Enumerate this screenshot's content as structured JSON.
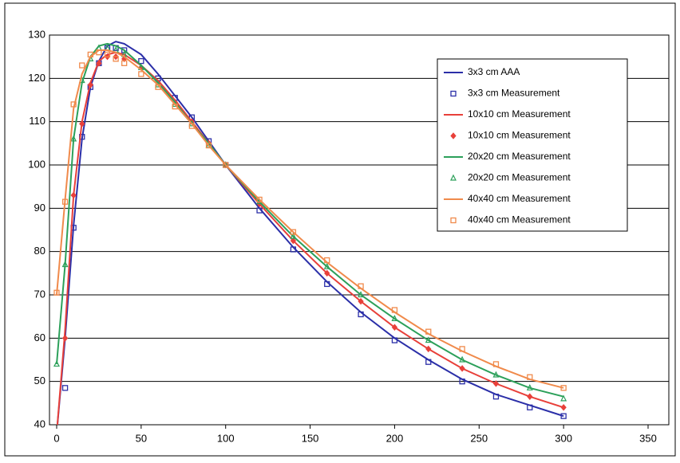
{
  "chart_data": {
    "type": "line",
    "x": [
      0,
      5,
      10,
      15,
      20,
      25,
      30,
      35,
      40,
      50,
      60,
      70,
      80,
      90,
      100,
      120,
      140,
      160,
      180,
      200,
      220,
      240,
      260,
      280,
      300
    ],
    "xlim": [
      0,
      350
    ],
    "xticks": [
      0,
      50,
      100,
      150,
      200,
      250,
      300,
      350
    ],
    "ylim": [
      40,
      130
    ],
    "yticks": [
      40,
      50,
      60,
      70,
      80,
      90,
      100,
      110,
      120,
      130
    ],
    "grid": true,
    "legend": "upper right",
    "series": [
      {
        "name": "3x3 cm AAA",
        "color": "#2b2fa8",
        "style": "line",
        "values": [
          38,
          60,
          86,
          106,
          118,
          124,
          127.5,
          128.5,
          128,
          125.5,
          121,
          116,
          111,
          105.5,
          100,
          90,
          81,
          73,
          66,
          60,
          55,
          50.5,
          47,
          44.5,
          42
        ]
      },
      {
        "name": "3x3 cm Measurement",
        "color": "#2b2fa8",
        "style": "square",
        "values": [
          37,
          48.5,
          85.5,
          106.5,
          118,
          123.5,
          127,
          127,
          126.5,
          124,
          120,
          115.5,
          111,
          105.5,
          100,
          89.5,
          80.5,
          72.5,
          65.5,
          59.5,
          54.5,
          50,
          46.5,
          44,
          42
        ]
      },
      {
        "name": "10x10 cm Measurement",
        "color": "#e8403a",
        "style": "line",
        "values": [
          38,
          62,
          93,
          110,
          119,
          124,
          125.5,
          126,
          125.5,
          123,
          119.5,
          115,
          110,
          105,
          100,
          91,
          82.5,
          75,
          68.5,
          62.5,
          57.5,
          53,
          49.5,
          46.5,
          44
        ]
      },
      {
        "name": "10x10 cm Measurement",
        "color": "#e8403a",
        "style": "diamond",
        "values": [
          39,
          60,
          93,
          109.5,
          118.5,
          123.5,
          125,
          125,
          124.5,
          122.5,
          119,
          114.5,
          110,
          105,
          100,
          91,
          82.5,
          75,
          68.5,
          62.5,
          57.5,
          53,
          49.5,
          46.5,
          44
        ]
      },
      {
        "name": "20x20 cm Measurement",
        "color": "#2ca05a",
        "style": "line",
        "values": [
          54,
          77,
          106,
          119,
          125,
          127.5,
          128,
          127.5,
          126.5,
          123,
          119,
          114.5,
          109.5,
          105,
          100,
          91.5,
          83.5,
          76.5,
          70,
          64.5,
          59.5,
          55,
          51.5,
          48.5,
          46.5
        ]
      },
      {
        "name": "20x20 cm Measurement",
        "color": "#2ca05a",
        "style": "triangle",
        "values": [
          54,
          77,
          106,
          119.5,
          124.5,
          127,
          127,
          126.5,
          125.5,
          122.5,
          118.5,
          114,
          109.5,
          104.5,
          100,
          91.5,
          83.5,
          76.5,
          70,
          64.5,
          59.5,
          55,
          51.5,
          48.5,
          46
        ]
      },
      {
        "name": "40x40 cm Measurement",
        "color": "#f08a4b",
        "style": "line",
        "values": [
          70,
          92,
          113,
          121,
          125,
          126.5,
          126.5,
          126,
          125,
          122,
          118.5,
          114,
          109.5,
          104.5,
          100,
          92,
          84.5,
          77.5,
          71.5,
          66,
          61,
          57,
          53.5,
          50.5,
          48.5
        ]
      },
      {
        "name": "40x40 cm Measurement",
        "color": "#f08a4b",
        "style": "square",
        "values": [
          70.5,
          91.5,
          114,
          123,
          125.5,
          126,
          125.5,
          124.5,
          123.5,
          121,
          118,
          113.5,
          109,
          104.5,
          100,
          92,
          84.5,
          78,
          72,
          66.5,
          61.5,
          57.5,
          54,
          51,
          48.5
        ]
      }
    ]
  }
}
